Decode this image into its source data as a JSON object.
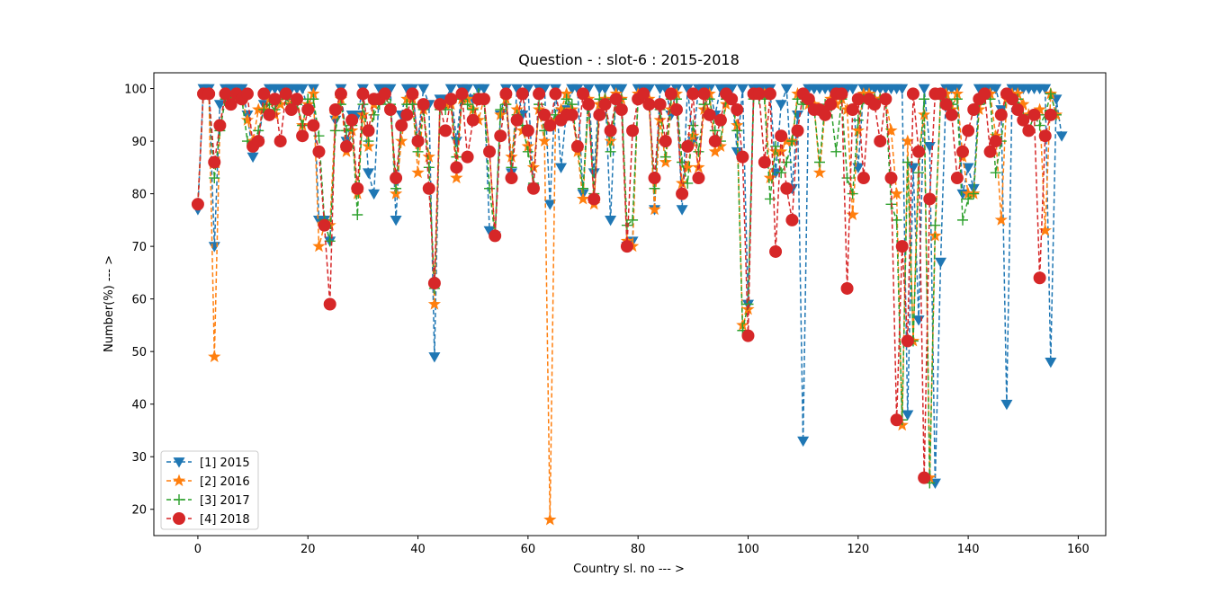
{
  "chart_data": {
    "type": "line",
    "title": "Question - : slot-6 : 2015-2018",
    "xlabel": "Country sl. no --- >",
    "ylabel": "Number(%) --- >",
    "xlim": [
      -8,
      165
    ],
    "ylim": [
      15,
      103
    ],
    "xticks": [
      0,
      20,
      40,
      60,
      80,
      100,
      120,
      140,
      160
    ],
    "yticks": [
      20,
      30,
      40,
      50,
      60,
      70,
      80,
      90,
      100
    ],
    "grid": false,
    "legend_position": "lower-left",
    "series": [
      {
        "name": "[1] 2015",
        "color": "#1f77b4",
        "marker": "triangle-down",
        "x": [
          0,
          1,
          2,
          3,
          4,
          5,
          6,
          7,
          8,
          9,
          10,
          11,
          12,
          13,
          14,
          15,
          16,
          17,
          18,
          19,
          20,
          21,
          22,
          23,
          24,
          25,
          26,
          27,
          28,
          29,
          30,
          31,
          32,
          33,
          34,
          35,
          36,
          37,
          38,
          39,
          40,
          41,
          42,
          43,
          44,
          45,
          46,
          47,
          48,
          49,
          50,
          51,
          52,
          53,
          54,
          55,
          56,
          57,
          58,
          59,
          60,
          61,
          62,
          63,
          64,
          65,
          66,
          67,
          68,
          69,
          70,
          71,
          72,
          73,
          74,
          75,
          76,
          77,
          78,
          79,
          80,
          81,
          82,
          83,
          84,
          85,
          86,
          87,
          88,
          89,
          90,
          91,
          92,
          93,
          94,
          95,
          96,
          97,
          98,
          99,
          100,
          101,
          102,
          103,
          104,
          105,
          106,
          107,
          108,
          109,
          110,
          111,
          112,
          113,
          114,
          115,
          116,
          117,
          118,
          119,
          120,
          121,
          122,
          123,
          124,
          125,
          126,
          127,
          128,
          129,
          130,
          131,
          132,
          133,
          134,
          135,
          136,
          137,
          138,
          139,
          140,
          141,
          142,
          143,
          144,
          145,
          146,
          147,
          148,
          149,
          150,
          151,
          152,
          153,
          154,
          155,
          156,
          157
        ],
        "y": [
          77,
          100,
          100,
          70,
          97,
          100,
          100,
          100,
          100,
          95,
          87,
          90,
          97,
          100,
          100,
          100,
          100,
          100,
          100,
          100,
          96,
          100,
          75,
          75,
          71,
          94,
          100,
          90,
          95,
          95,
          100,
          84,
          80,
          100,
          100,
          100,
          75,
          95,
          100,
          100,
          90,
          100,
          97,
          49,
          98,
          98,
          100,
          90,
          100,
          100,
          98,
          100,
          100,
          73,
          72,
          95,
          100,
          84,
          100,
          95,
          100,
          81,
          100,
          100,
          78,
          100,
          85,
          96,
          100,
          100,
          80,
          100,
          84,
          100,
          100,
          75,
          100,
          100,
          70,
          71,
          100,
          100,
          100,
          77,
          100,
          100,
          95,
          100,
          77,
          100,
          90,
          100,
          100,
          100,
          95,
          100,
          100,
          100,
          88,
          100,
          59,
          100,
          100,
          100,
          100,
          84,
          97,
          100,
          81,
          95,
          33,
          100,
          100,
          100,
          100,
          100,
          100,
          100,
          100,
          100,
          85,
          100,
          100,
          100,
          100,
          100,
          100,
          100,
          100,
          38,
          85,
          56,
          100,
          89,
          25,
          67,
          100,
          100,
          100,
          80,
          85,
          81,
          100,
          100,
          100,
          100,
          96,
          40,
          100,
          100,
          100,
          100,
          100,
          100,
          100,
          48,
          98,
          91
        ]
      },
      {
        "name": "[2] 2016",
        "color": "#ff7f0e",
        "marker": "star",
        "x": [
          0,
          1,
          2,
          3,
          4,
          5,
          6,
          7,
          8,
          9,
          10,
          11,
          12,
          13,
          14,
          15,
          16,
          17,
          18,
          19,
          20,
          21,
          22,
          23,
          24,
          25,
          26,
          27,
          28,
          29,
          30,
          31,
          32,
          33,
          34,
          35,
          36,
          37,
          38,
          39,
          40,
          41,
          42,
          43,
          44,
          45,
          46,
          47,
          48,
          49,
          50,
          51,
          52,
          53,
          54,
          55,
          56,
          57,
          58,
          59,
          60,
          61,
          62,
          63,
          64,
          65,
          66,
          67,
          68,
          69,
          70,
          71,
          72,
          73,
          74,
          75,
          76,
          77,
          78,
          79,
          80,
          81,
          82,
          83,
          84,
          85,
          86,
          87,
          88,
          89,
          90,
          91,
          92,
          93,
          94,
          95,
          96,
          97,
          98,
          99,
          100,
          101,
          102,
          103,
          104,
          105,
          106,
          107,
          108,
          109,
          110,
          111,
          112,
          113,
          114,
          115,
          116,
          117,
          118,
          119,
          120,
          121,
          122,
          123,
          124,
          125,
          126,
          127,
          128,
          129,
          130,
          131,
          132,
          133,
          134,
          135,
          136,
          137,
          138,
          139,
          140,
          141,
          142,
          143,
          144,
          145,
          146,
          147,
          148,
          149,
          150,
          151,
          152,
          153,
          154,
          155,
          156
        ],
        "y": [
          78,
          99,
          99,
          49,
          93,
          99,
          98,
          99,
          98,
          94,
          90,
          96,
          96,
          98,
          95,
          97,
          99,
          97,
          98,
          93,
          97,
          99,
          70,
          74,
          74,
          95,
          98,
          88,
          92,
          80,
          95,
          89,
          97,
          98,
          99,
          96,
          80,
          90,
          98,
          98,
          84,
          96,
          87,
          59,
          97,
          97,
          97,
          83,
          98,
          98,
          96,
          94,
          98,
          88,
          72,
          95,
          98,
          87,
          96,
          92,
          89,
          85,
          96,
          90,
          18,
          94,
          96,
          99,
          96,
          88,
          79,
          98,
          78,
          97,
          98,
          90,
          99,
          98,
          71,
          70,
          99,
          99,
          98,
          77,
          94,
          86,
          96,
          99,
          82,
          85,
          91,
          85,
          96,
          99,
          88,
          89,
          97,
          98,
          93,
          55,
          58,
          99,
          99,
          99,
          83,
          88,
          88,
          90,
          90,
          99,
          99,
          97,
          97,
          84,
          96,
          98,
          97,
          98,
          96,
          76,
          92,
          99,
          99,
          98,
          98,
          98,
          92,
          80,
          36,
          90,
          52,
          88,
          95,
          26,
          72,
          99,
          99,
          96,
          99,
          87,
          80,
          80,
          96,
          99,
          99,
          91,
          75,
          98,
          99,
          99,
          97,
          95,
          95,
          96,
          73,
          99,
          95
        ]
      },
      {
        "name": "[3] 2017",
        "color": "#2ca02c",
        "marker": "plus",
        "x": [
          0,
          1,
          2,
          3,
          4,
          5,
          6,
          7,
          8,
          9,
          10,
          11,
          12,
          13,
          14,
          15,
          16,
          17,
          18,
          19,
          20,
          21,
          22,
          23,
          24,
          25,
          26,
          27,
          28,
          29,
          30,
          31,
          32,
          33,
          34,
          35,
          36,
          37,
          38,
          39,
          40,
          41,
          42,
          43,
          44,
          45,
          46,
          47,
          48,
          49,
          50,
          51,
          52,
          53,
          54,
          55,
          56,
          57,
          58,
          59,
          60,
          61,
          62,
          63,
          64,
          65,
          66,
          67,
          68,
          69,
          70,
          71,
          72,
          73,
          74,
          75,
          76,
          77,
          78,
          79,
          80,
          81,
          82,
          83,
          84,
          85,
          86,
          87,
          88,
          89,
          90,
          91,
          92,
          93,
          94,
          95,
          96,
          97,
          98,
          99,
          100,
          101,
          102,
          103,
          104,
          105,
          106,
          107,
          108,
          109,
          110,
          111,
          112,
          113,
          114,
          115,
          116,
          117,
          118,
          119,
          120,
          121,
          122,
          123,
          124,
          125,
          126,
          127,
          128,
          129,
          130,
          131,
          132,
          133,
          134,
          135,
          136,
          137,
          138,
          139,
          140,
          141,
          142,
          143,
          144,
          145,
          146,
          147,
          148,
          149,
          150,
          151,
          152,
          153,
          154,
          155,
          156
        ],
        "y": [
          78,
          99,
          99,
          83,
          92,
          98,
          98,
          98,
          98,
          90,
          89,
          92,
          96,
          97,
          96,
          98,
          98,
          97,
          97,
          93,
          98,
          98,
          91,
          75,
          71,
          92,
          97,
          92,
          93,
          76,
          97,
          90,
          95,
          97,
          98,
          97,
          81,
          93,
          97,
          97,
          88,
          96,
          85,
          62,
          96,
          96,
          98,
          87,
          98,
          97,
          96,
          99,
          98,
          81,
          72,
          96,
          97,
          85,
          95,
          93,
          88,
          82,
          97,
          92,
          93,
          95,
          94,
          98,
          97,
          89,
          81,
          97,
          80,
          98,
          98,
          88,
          98,
          98,
          74,
          75,
          98,
          98,
          97,
          81,
          96,
          87,
          98,
          98,
          86,
          82,
          93,
          88,
          97,
          98,
          92,
          90,
          98,
          98,
          92,
          54,
          59,
          98,
          98,
          98,
          79,
          89,
          84,
          86,
          90,
          98,
          97,
          97,
          96,
          86,
          97,
          97,
          88,
          98,
          83,
          80,
          94,
          98,
          98,
          98,
          98,
          98,
          78,
          75,
          37,
          86,
          52,
          84,
          98,
          25,
          74,
          98,
          98,
          97,
          98,
          75,
          79,
          80,
          97,
          98,
          98,
          84,
          90,
          99,
          98,
          98,
          95,
          92,
          95,
          93,
          95,
          99,
          95
        ]
      },
      {
        "name": "[4] 2018",
        "color": "#d62728",
        "marker": "circle",
        "x": [
          0,
          1,
          2,
          3,
          4,
          5,
          6,
          7,
          8,
          9,
          10,
          11,
          12,
          13,
          14,
          15,
          16,
          17,
          18,
          19,
          20,
          21,
          22,
          23,
          24,
          25,
          26,
          27,
          28,
          29,
          30,
          31,
          32,
          33,
          34,
          35,
          36,
          37,
          38,
          39,
          40,
          41,
          42,
          43,
          44,
          45,
          46,
          47,
          48,
          49,
          50,
          51,
          52,
          53,
          54,
          55,
          56,
          57,
          58,
          59,
          60,
          61,
          62,
          63,
          64,
          65,
          66,
          67,
          68,
          69,
          70,
          71,
          72,
          73,
          74,
          75,
          76,
          77,
          78,
          79,
          80,
          81,
          82,
          83,
          84,
          85,
          86,
          87,
          88,
          89,
          90,
          91,
          92,
          93,
          94,
          95,
          96,
          97,
          98,
          99,
          100,
          101,
          102,
          103,
          104,
          105,
          106,
          107,
          108,
          109,
          110,
          111,
          112,
          113,
          114,
          115,
          116,
          117,
          118,
          119,
          120,
          121,
          122,
          123,
          124,
          125,
          126,
          127,
          128,
          129,
          130,
          131,
          132,
          133,
          134,
          135,
          136,
          137,
          138,
          139,
          140,
          141,
          142,
          143,
          144,
          145,
          146,
          147,
          148,
          149,
          150,
          151,
          152,
          153,
          154,
          155
        ],
        "y": [
          78,
          99,
          99,
          86,
          93,
          99,
          97,
          99,
          98,
          99,
          89,
          90,
          99,
          95,
          98,
          90,
          99,
          96,
          98,
          91,
          96,
          93,
          88,
          74,
          59,
          96,
          99,
          89,
          94,
          81,
          99,
          92,
          98,
          98,
          99,
          96,
          83,
          93,
          95,
          99,
          90,
          97,
          81,
          63,
          97,
          92,
          98,
          85,
          99,
          87,
          94,
          98,
          98,
          88,
          72,
          91,
          99,
          83,
          94,
          99,
          92,
          81,
          99,
          95,
          93,
          99,
          94,
          95,
          95,
          89,
          99,
          97,
          79,
          95,
          97,
          92,
          98,
          96,
          70,
          92,
          98,
          99,
          97,
          83,
          97,
          90,
          99,
          96,
          80,
          89,
          99,
          83,
          99,
          95,
          90,
          94,
          99,
          98,
          96,
          87,
          53,
          99,
          99,
          86,
          99,
          69,
          91,
          81,
          75,
          92,
          99,
          98,
          96,
          96,
          95,
          97,
          99,
          99,
          62,
          96,
          98,
          83,
          98,
          97,
          90,
          98,
          83,
          37,
          70,
          52,
          99,
          88,
          26,
          79,
          99,
          99,
          97,
          95,
          83,
          88,
          92,
          96,
          98,
          99,
          88,
          90,
          95,
          99,
          98,
          96,
          94,
          92,
          95,
          64,
          91,
          95
        ]
      }
    ]
  }
}
